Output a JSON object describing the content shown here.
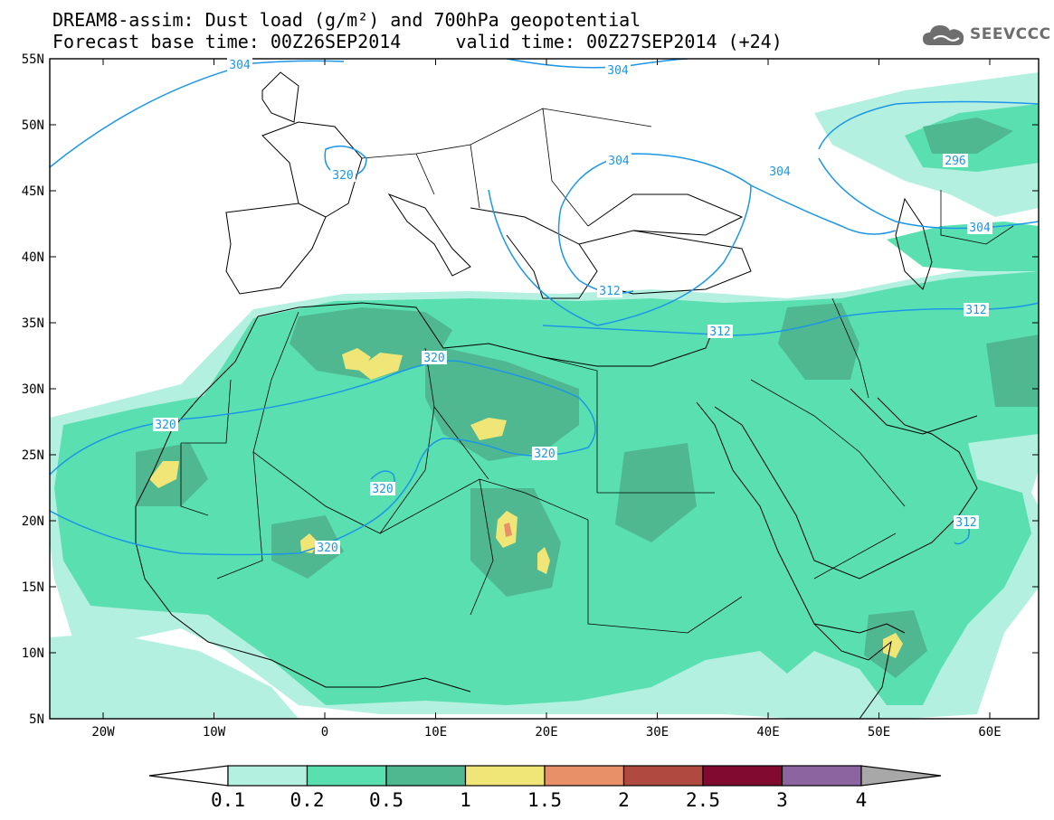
{
  "header": {
    "title_line1": "DREAM8-assim: Dust load (g/m²) and 700hPa geopotential",
    "title_line2": "Forecast base time: 00Z26SEP2014     valid time: 00Z27SEP2014 (+24)"
  },
  "logo": {
    "text": "SEEVCCC",
    "icon": "cloud-icon",
    "color": "#6e6e6e"
  },
  "axes": {
    "lat_labels": [
      "55N",
      "50N",
      "45N",
      "40N",
      "35N",
      "30N",
      "25N",
      "20N",
      "15N",
      "10N",
      "5N"
    ],
    "lon_labels": [
      "20W",
      "10W",
      "0",
      "10E",
      "20E",
      "30E",
      "40E",
      "50E",
      "60E"
    ]
  },
  "contour_labels": [
    "304",
    "304",
    "304",
    "320",
    "304",
    "296",
    "304",
    "312",
    "312",
    "312",
    "320",
    "320",
    "320",
    "320",
    "320",
    "312"
  ],
  "colorbar": {
    "labels": [
      "0.1",
      "0.2",
      "0.5",
      "1",
      "1.5",
      "2",
      "2.5",
      "3",
      "4"
    ],
    "colors": [
      "#b4f0e0",
      "#5ae0b0",
      "#50b890",
      "#f0e678",
      "#e89068",
      "#b04a40",
      "#800a30",
      "#8c64a0",
      "#a8a8a8"
    ]
  },
  "map_colors": {
    "light": "#b4f0e0",
    "mid": "#5ae0b0",
    "dark": "#50b890",
    "yellow": "#f0e678",
    "orange": "#e89068",
    "contour": "#1c96e6"
  }
}
